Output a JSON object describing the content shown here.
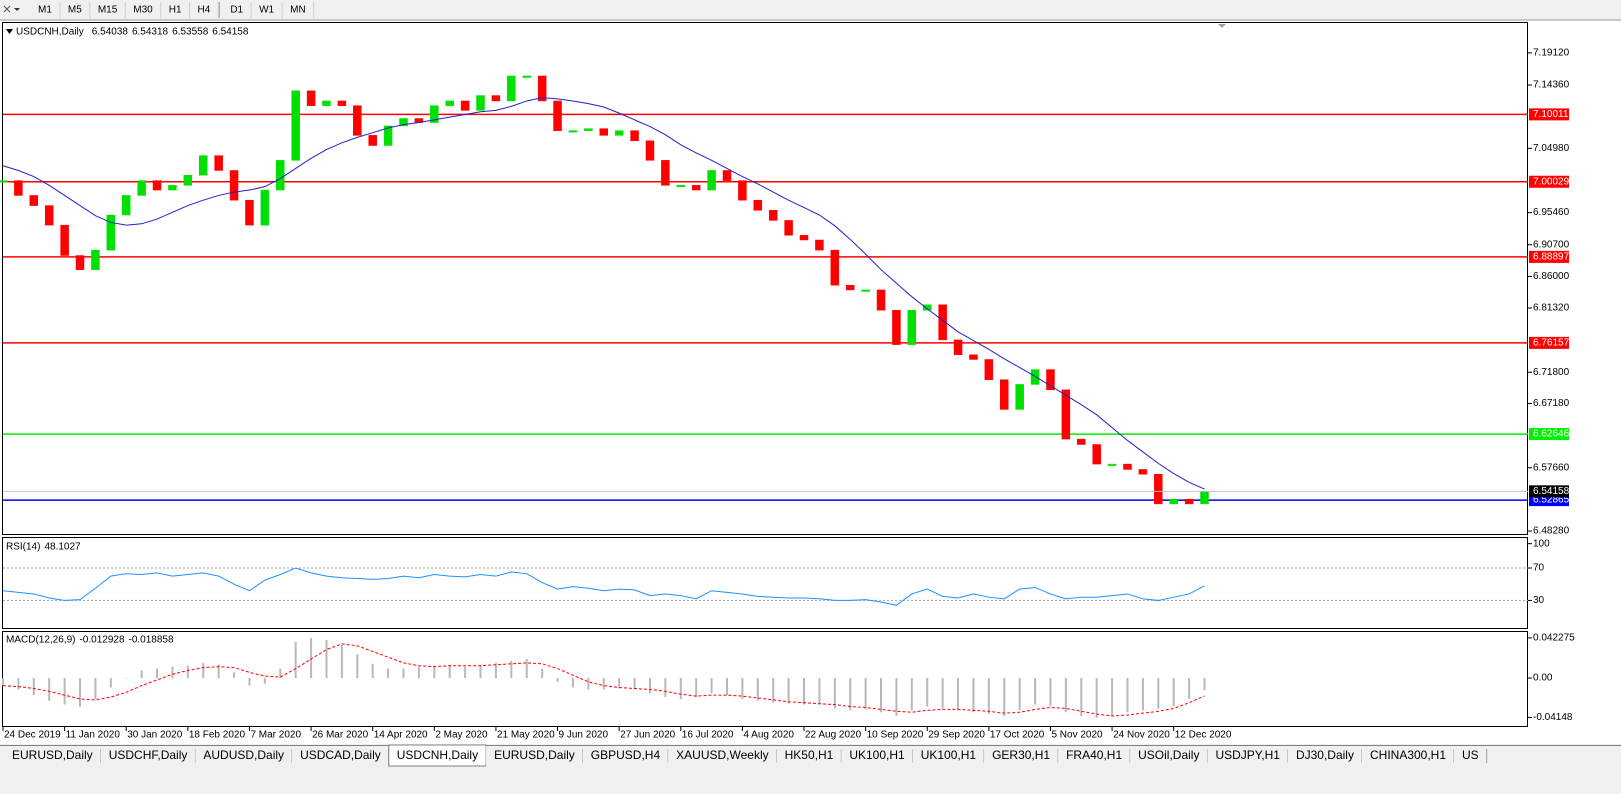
{
  "toolbar": {
    "timeframes": [
      "M1",
      "M5",
      "M15",
      "M30",
      "H1",
      "H4",
      "D1",
      "W1",
      "MN"
    ]
  },
  "chart_data": [
    {
      "type": "candlestick",
      "title": "USDCNH,Daily",
      "ohlc": [
        6.54038,
        6.54318,
        6.53558,
        6.54158
      ],
      "up_color": "#00e000",
      "down_color": "#ff0000",
      "xlim": [
        0,
        99
      ],
      "xticks": [
        {
          "value": 0,
          "label": "24 Dec 2019"
        },
        {
          "value": 4,
          "label": "11 Jan 2020"
        },
        {
          "value": 8,
          "label": "30 Jan 2020"
        },
        {
          "value": 12,
          "label": "18 Feb 2020"
        },
        {
          "value": 16,
          "label": "7 Mar 2020"
        },
        {
          "value": 20,
          "label": "26 Mar 2020"
        },
        {
          "value": 24,
          "label": "14 Apr 2020"
        },
        {
          "value": 28,
          "label": "2 May 2020"
        },
        {
          "value": 32,
          "label": "21 May 2020"
        },
        {
          "value": 36,
          "label": "9 Jun 2020"
        },
        {
          "value": 40,
          "label": "27 Jun 2020"
        },
        {
          "value": 44,
          "label": "16 Jul 2020"
        },
        {
          "value": 48,
          "label": "4 Aug 2020"
        },
        {
          "value": 52,
          "label": "22 Aug 2020"
        },
        {
          "value": 56,
          "label": "10 Sep 2020"
        },
        {
          "value": 60,
          "label": "29 Sep 2020"
        },
        {
          "value": 64,
          "label": "17 Oct 2020"
        },
        {
          "value": 68,
          "label": "5 Nov 2020"
        },
        {
          "value": 72,
          "label": "24 Nov 2020"
        },
        {
          "value": 76,
          "label": "12 Dec 2020"
        }
      ],
      "ylim": [
        6.4784,
        7.2355
      ],
      "yticks": [
        {
          "value": 7.1912,
          "label": "7.19120"
        },
        {
          "value": 7.1436,
          "label": "7.14360"
        },
        {
          "value": 7.0498,
          "label": "7.04980"
        },
        {
          "value": 6.9546,
          "label": "6.95460"
        },
        {
          "value": 6.907,
          "label": "6.90700"
        },
        {
          "value": 6.86,
          "label": "6.86000"
        },
        {
          "value": 6.8132,
          "label": "6.81320"
        },
        {
          "value": 6.718,
          "label": "6.71800"
        },
        {
          "value": 6.6718,
          "label": "6.67180"
        },
        {
          "value": 6.5766,
          "label": "6.57660"
        },
        {
          "value": 6.4828,
          "label": "6.48280"
        }
      ],
      "levels": [
        {
          "value": 7.10011,
          "color": "#ff0000"
        },
        {
          "value": 7.00029,
          "color": "#ff0000"
        },
        {
          "value": 6.88897,
          "color": "#ff0000"
        },
        {
          "value": 6.76157,
          "color": "#ff0000"
        },
        {
          "value": 6.62646,
          "color": "#00ee00"
        },
        {
          "value": 6.52865,
          "color": "#0000ff"
        }
      ],
      "values": [
        7.002,
        6.98,
        6.965,
        6.936,
        6.891,
        6.87,
        6.899,
        6.951,
        6.98,
        7.002,
        6.988,
        6.995,
        7.01,
        7.039,
        7.017,
        6.973,
        6.936,
        6.988,
        7.032,
        7.135,
        7.113,
        7.12,
        7.113,
        7.069,
        7.054,
        7.083,
        7.094,
        7.088,
        7.113,
        7.12,
        7.106,
        7.128,
        7.12,
        7.157,
        7.157,
        7.12,
        7.076,
        7.076,
        7.079,
        7.069,
        7.076,
        7.061,
        7.032,
        6.995,
        6.995,
        6.988,
        7.017,
        7.002,
        6.973,
        6.958,
        6.943,
        6.921,
        6.914,
        6.899,
        6.847,
        6.84,
        6.84,
        6.81,
        6.759,
        6.81,
        6.818,
        6.766,
        6.744,
        6.737,
        6.707,
        6.663,
        6.7,
        6.722,
        6.692,
        6.619,
        6.611,
        6.582,
        6.582,
        6.574,
        6.567,
        6.523,
        6.53,
        6.523,
        6.54158
      ],
      "ma_color": "#2020c8",
      "ma_values": [
        7.024,
        7.017,
        7.008,
        6.995,
        6.98,
        6.965,
        6.95,
        6.94,
        6.936,
        6.938,
        6.945,
        6.955,
        6.965,
        6.973,
        6.98,
        6.985,
        6.988,
        6.993,
        7.005,
        7.02,
        7.035,
        7.048,
        7.058,
        7.066,
        7.073,
        7.08,
        7.085,
        7.088,
        7.092,
        7.096,
        7.1,
        7.104,
        7.106,
        7.112,
        7.12,
        7.125,
        7.123,
        7.12,
        7.116,
        7.111,
        7.102,
        7.092,
        7.082,
        7.07,
        7.055,
        7.043,
        7.032,
        7.02,
        7.008,
        6.997,
        6.985,
        6.973,
        6.962,
        6.951,
        6.935,
        6.915,
        6.893,
        6.87,
        6.85,
        6.83,
        6.812,
        6.795,
        6.778,
        6.765,
        6.752,
        6.738,
        6.725,
        6.712,
        6.698,
        6.684,
        6.67,
        6.655,
        6.636,
        6.617,
        6.6,
        6.583,
        6.568,
        6.555,
        6.545
      ]
    },
    {
      "type": "line",
      "title": "RSI(14)",
      "color": "#1e90ff",
      "ylim": [
        -4,
        107
      ],
      "yticks": [
        100,
        70,
        30
      ],
      "levels": [
        70,
        30
      ],
      "values": [
        42,
        40,
        38,
        33,
        30,
        31,
        45,
        60,
        63,
        62,
        64,
        60,
        62,
        64,
        60,
        50,
        42,
        55,
        62,
        70,
        64,
        60,
        58,
        57,
        56,
        57,
        60,
        58,
        62,
        60,
        59,
        62,
        60,
        65,
        63,
        52,
        44,
        47,
        45,
        42,
        44,
        43,
        36,
        38,
        36,
        32,
        42,
        40,
        38,
        35,
        34,
        33,
        33,
        32,
        30,
        30,
        31,
        28,
        24,
        38,
        44,
        35,
        33,
        38,
        34,
        32,
        44,
        46,
        38,
        32,
        34,
        34,
        36,
        38,
        32,
        30,
        34,
        38,
        48.1027
      ]
    },
    {
      "type": "bar",
      "title": "MACD(12,26,9)",
      "color": "#b8b8b8",
      "signal_color": "#ff0000",
      "ylim": [
        -0.0505,
        0.0485
      ],
      "yticks": [
        0.042275,
        {
          "value": 0,
          "label": "0.00"
        },
        -0.04148
      ],
      "values": [
        -0.008,
        -0.012,
        -0.018,
        -0.024,
        -0.028,
        -0.03,
        -0.022,
        -0.01,
        0.0,
        0.008,
        0.01,
        0.012,
        0.013,
        0.016,
        0.014,
        0.006,
        -0.008,
        -0.006,
        0.01,
        0.038,
        0.042,
        0.04,
        0.035,
        0.025,
        0.015,
        0.01,
        0.01,
        0.012,
        0.013,
        0.014,
        0.012,
        0.014,
        0.016,
        0.018,
        0.02,
        0.01,
        -0.004,
        -0.01,
        -0.012,
        -0.012,
        -0.011,
        -0.012,
        -0.016,
        -0.02,
        -0.022,
        -0.02,
        -0.016,
        -0.018,
        -0.022,
        -0.024,
        -0.026,
        -0.027,
        -0.028,
        -0.028,
        -0.032,
        -0.034,
        -0.033,
        -0.036,
        -0.04,
        -0.034,
        -0.03,
        -0.032,
        -0.034,
        -0.036,
        -0.038,
        -0.04,
        -0.034,
        -0.028,
        -0.03,
        -0.036,
        -0.04,
        -0.042,
        -0.04,
        -0.036,
        -0.034,
        -0.032,
        -0.03,
        -0.022,
        -0.012928
      ],
      "signal": [
        -0.008,
        -0.009,
        -0.011,
        -0.014,
        -0.018,
        -0.022,
        -0.023,
        -0.02,
        -0.015,
        -0.008,
        -0.002,
        0.004,
        0.008,
        0.011,
        0.012,
        0.011,
        0.006,
        0.002,
        0.001,
        0.01,
        0.02,
        0.03,
        0.036,
        0.034,
        0.028,
        0.022,
        0.016,
        0.013,
        0.012,
        0.013,
        0.013,
        0.013,
        0.014,
        0.015,
        0.016,
        0.015,
        0.01,
        0.003,
        -0.004,
        -0.008,
        -0.01,
        -0.011,
        -0.012,
        -0.014,
        -0.017,
        -0.019,
        -0.018,
        -0.018,
        -0.019,
        -0.021,
        -0.023,
        -0.025,
        -0.026,
        -0.027,
        -0.028,
        -0.03,
        -0.031,
        -0.033,
        -0.035,
        -0.036,
        -0.034,
        -0.033,
        -0.033,
        -0.034,
        -0.035,
        -0.037,
        -0.036,
        -0.033,
        -0.031,
        -0.032,
        -0.035,
        -0.038,
        -0.04,
        -0.039,
        -0.037,
        -0.035,
        -0.032,
        -0.026,
        -0.018858
      ]
    }
  ],
  "tabs": [
    "EURUSD,Daily",
    "USDCHF,Daily",
    "AUDUSD,Daily",
    "USDCAD,Daily",
    "USDCNH,Daily",
    "EURUSD,Daily",
    "GBPUSD,H4",
    "XAUUSD,Weekly",
    "HK50,H1",
    "UK100,H1",
    "UK100,H1",
    "GER30,H1",
    "FRA40,H1",
    "USOil,Daily",
    "USDJPY,H1",
    "DJ30,Daily",
    "CHINA300,H1",
    "US"
  ],
  "active_tab": 4
}
